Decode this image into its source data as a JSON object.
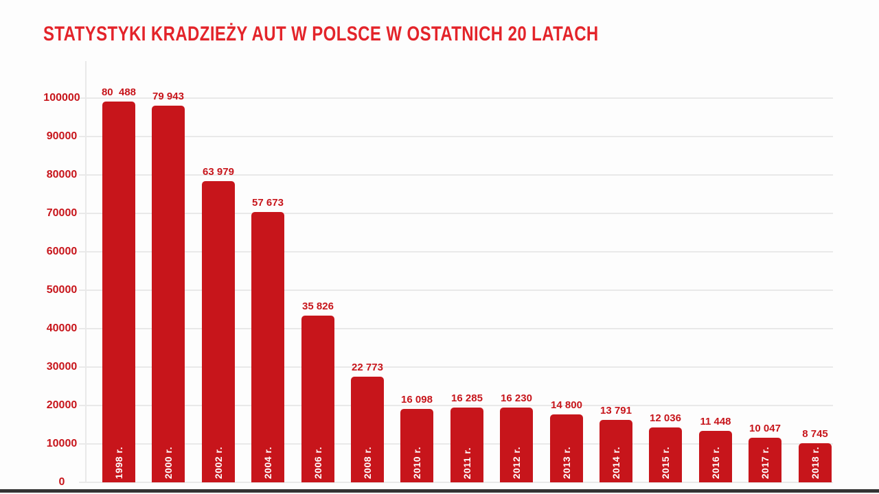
{
  "title": "STATYSTYKI KRADZIEŻY AUT W POLSCE W OSTATNICH 20 LATACH",
  "colors": {
    "background": "#fdfdfd",
    "title": "#e3242a",
    "accent_red": "#c7151b",
    "gridline": "#e9e9e9",
    "year_label": "#ffffff",
    "bottom_band": "#343434"
  },
  "chart_data": {
    "type": "bar",
    "title": "STATYSTYKI KRADZIEŻY AUT W POLSCE W OSTATNICH 20 LATACH",
    "categories": [
      "1998 r.",
      "2000 r.",
      "2002 r.",
      "2004 r.",
      "2006 r.",
      "2008 r.",
      "2010 r.",
      "2011 r.",
      "2012 r.",
      "2013 r.",
      "2014 r.",
      "2015 r.",
      "2016 r.",
      "2017 r.",
      "2018 r."
    ],
    "values": [
      80488,
      79943,
      63979,
      57673,
      35826,
      22773,
      16098,
      16285,
      16230,
      14800,
      13791,
      12036,
      11448,
      10047,
      8745
    ],
    "value_labels": [
      "80  488",
      "79 943",
      "63 979",
      "57 673",
      "35 826",
      "22 773",
      "16 098",
      "16 285",
      "16 230",
      "14 800",
      "13 791",
      "12 036",
      "11 448",
      "10 047",
      "8 745"
    ],
    "drawn_values_axis_units": [
      99100,
      98050,
      78400,
      70350,
      43400,
      27500,
      19100,
      19450,
      19450,
      17680,
      16250,
      14290,
      13390,
      11610,
      10180
    ],
    "drawn_note": "Bars are rendered ~22% taller than their labeled values relative to the y-axis scale in the source image",
    "xlabel": "",
    "ylabel": "",
    "ylim": [
      0,
      100000
    ],
    "y_ticks": [
      0,
      10000,
      20000,
      30000,
      40000,
      50000,
      60000,
      70000,
      80000,
      90000,
      100000
    ],
    "y_tick_labels": [
      "0",
      "10000",
      "20000",
      "30000",
      "40000",
      "50000",
      "60000",
      "70000",
      "80000",
      "90000",
      "100000"
    ],
    "grid": "horizontal",
    "legend": "none",
    "bar_color": "#c7151b"
  }
}
